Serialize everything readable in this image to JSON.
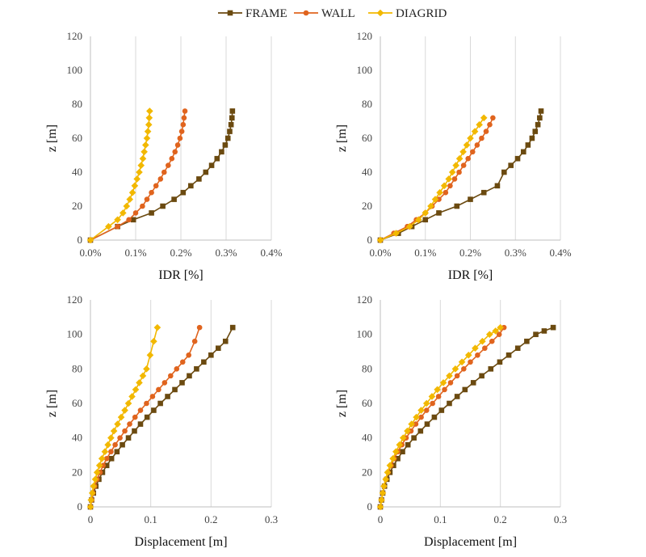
{
  "legend": {
    "items": [
      {
        "label": "FRAME",
        "color": "#6b4a10",
        "marker": "square"
      },
      {
        "label": "WALL",
        "color": "#e0641e",
        "marker": "circle"
      },
      {
        "label": "DIAGRID",
        "color": "#f2b800",
        "marker": "diamond"
      }
    ]
  },
  "chart_data": [
    {
      "type": "line",
      "xlabel": "IDR [%]",
      "ylabel": "z [m]",
      "xlim": [
        0,
        0.4
      ],
      "ylim": [
        0,
        120
      ],
      "x_ticks": [
        0,
        0.1,
        0.2,
        0.3,
        0.4
      ],
      "x_tick_labels": [
        "0.0%",
        "0.1%",
        "0.2%",
        "0.3%",
        "0.4%"
      ],
      "y_ticks": [
        0,
        20,
        40,
        60,
        80,
        100,
        120
      ],
      "grid": "vertical",
      "legend": "top",
      "series": [
        {
          "name": "FRAME",
          "x": [
            0,
            0.06,
            0.095,
            0.135,
            0.16,
            0.185,
            0.205,
            0.222,
            0.24,
            0.255,
            0.268,
            0.28,
            0.29,
            0.298,
            0.304,
            0.308,
            0.311,
            0.313,
            0.314
          ],
          "y": [
            0,
            8,
            12,
            16,
            20,
            24,
            28,
            32,
            36,
            40,
            44,
            48,
            52,
            56,
            60,
            64,
            68,
            72,
            76
          ]
        },
        {
          "name": "WALL",
          "x": [
            0,
            0.06,
            0.085,
            0.1,
            0.115,
            0.125,
            0.135,
            0.145,
            0.155,
            0.163,
            0.172,
            0.18,
            0.187,
            0.193,
            0.198,
            0.202,
            0.205,
            0.207,
            0.209
          ],
          "y": [
            0,
            8,
            12,
            16,
            20,
            24,
            28,
            32,
            36,
            40,
            44,
            48,
            52,
            56,
            60,
            64,
            68,
            72,
            76
          ]
        },
        {
          "name": "DIAGRID",
          "x": [
            0,
            0.04,
            0.06,
            0.072,
            0.08,
            0.087,
            0.093,
            0.098,
            0.103,
            0.108,
            0.112,
            0.116,
            0.119,
            0.122,
            0.125,
            0.127,
            0.129,
            0.13,
            0.131
          ],
          "y": [
            0,
            8,
            12,
            16,
            20,
            24,
            28,
            32,
            36,
            40,
            44,
            48,
            52,
            56,
            60,
            64,
            68,
            72,
            76
          ]
        }
      ]
    },
    {
      "type": "line",
      "xlabel": "IDR [%]",
      "ylabel": "z [m]",
      "xlim": [
        0,
        0.4
      ],
      "ylim": [
        0,
        120
      ],
      "x_ticks": [
        0,
        0.1,
        0.2,
        0.3,
        0.4
      ],
      "x_tick_labels": [
        "0.0%",
        "0.1%",
        "0.2%",
        "0.3%",
        "0.4%"
      ],
      "y_ticks": [
        0,
        20,
        40,
        60,
        80,
        100,
        120
      ],
      "grid": "vertical",
      "series": [
        {
          "name": "FRAME",
          "x": [
            0,
            0.04,
            0.07,
            0.1,
            0.13,
            0.17,
            0.2,
            0.23,
            0.26,
            0.275,
            0.29,
            0.305,
            0.318,
            0.328,
            0.337,
            0.344,
            0.35,
            0.354,
            0.357
          ],
          "y": [
            0,
            4,
            8,
            12,
            16,
            20,
            24,
            28,
            32,
            40,
            44,
            48,
            52,
            56,
            60,
            64,
            68,
            72,
            76
          ]
        },
        {
          "name": "WALL",
          "x": [
            0,
            0.03,
            0.06,
            0.08,
            0.1,
            0.115,
            0.13,
            0.145,
            0.155,
            0.165,
            0.175,
            0.185,
            0.195,
            0.205,
            0.215,
            0.225,
            0.235,
            0.243,
            0.25
          ],
          "y": [
            0,
            4,
            8,
            12,
            16,
            20,
            24,
            28,
            32,
            36,
            40,
            44,
            48,
            52,
            56,
            60,
            64,
            68,
            72
          ]
        },
        {
          "name": "DIAGRID",
          "x": [
            0,
            0.035,
            0.065,
            0.085,
            0.1,
            0.112,
            0.122,
            0.132,
            0.142,
            0.152,
            0.16,
            0.168,
            0.176,
            0.184,
            0.192,
            0.2,
            0.21,
            0.22,
            0.23
          ],
          "y": [
            0,
            4,
            8,
            12,
            16,
            20,
            24,
            28,
            32,
            36,
            40,
            44,
            48,
            52,
            56,
            60,
            64,
            68,
            72
          ]
        }
      ]
    },
    {
      "type": "line",
      "xlabel": "Displacement [m]",
      "ylabel": "z [m]",
      "xlim": [
        0,
        0.3
      ],
      "ylim": [
        0,
        120
      ],
      "x_ticks": [
        0,
        0.1,
        0.2,
        0.3
      ],
      "x_tick_labels": [
        "0",
        "0.1",
        "0.2",
        "0.3"
      ],
      "y_ticks": [
        0,
        20,
        40,
        60,
        80,
        100,
        120
      ],
      "grid": "vertical",
      "series": [
        {
          "name": "FRAME",
          "x": [
            0,
            0.002,
            0.005,
            0.009,
            0.014,
            0.02,
            0.027,
            0.035,
            0.044,
            0.053,
            0.063,
            0.073,
            0.083,
            0.094,
            0.105,
            0.116,
            0.128,
            0.14,
            0.152,
            0.164,
            0.176,
            0.188,
            0.2,
            0.212,
            0.224,
            0.236
          ],
          "y": [
            0,
            4,
            8,
            12,
            16,
            20,
            24,
            28,
            32,
            36,
            40,
            44,
            48,
            52,
            56,
            60,
            64,
            68,
            72,
            76,
            80,
            84,
            88,
            92,
            96,
            104
          ]
        },
        {
          "name": "WALL",
          "x": [
            0,
            0.002,
            0.004,
            0.007,
            0.011,
            0.016,
            0.021,
            0.027,
            0.034,
            0.041,
            0.049,
            0.057,
            0.065,
            0.074,
            0.083,
            0.093,
            0.103,
            0.113,
            0.123,
            0.133,
            0.143,
            0.153,
            0.163,
            0.173,
            0.181
          ],
          "y": [
            0,
            4,
            8,
            12,
            16,
            20,
            24,
            28,
            32,
            36,
            40,
            44,
            48,
            52,
            56,
            60,
            64,
            68,
            72,
            76,
            80,
            84,
            88,
            96,
            104
          ]
        },
        {
          "name": "DIAGRID",
          "x": [
            0,
            0.001,
            0.003,
            0.005,
            0.008,
            0.011,
            0.015,
            0.019,
            0.024,
            0.029,
            0.034,
            0.039,
            0.045,
            0.051,
            0.057,
            0.063,
            0.069,
            0.075,
            0.081,
            0.087,
            0.093,
            0.099,
            0.105,
            0.111
          ],
          "y": [
            0,
            4,
            8,
            12,
            16,
            20,
            24,
            28,
            32,
            36,
            40,
            44,
            48,
            52,
            56,
            60,
            64,
            68,
            72,
            76,
            80,
            88,
            96,
            104
          ]
        }
      ]
    },
    {
      "type": "line",
      "xlabel": "Displacement [m]",
      "ylabel": "z [m]",
      "xlim": [
        0,
        0.3
      ],
      "ylim": [
        0,
        120
      ],
      "x_ticks": [
        0,
        0.1,
        0.2,
        0.3
      ],
      "x_tick_labels": [
        "0",
        "0.1",
        "0.2",
        "0.3"
      ],
      "y_ticks": [
        0,
        20,
        40,
        60,
        80,
        100,
        120
      ],
      "grid": "vertical",
      "series": [
        {
          "name": "FRAME",
          "x": [
            0,
            0.002,
            0.004,
            0.007,
            0.011,
            0.016,
            0.022,
            0.029,
            0.037,
            0.046,
            0.056,
            0.067,
            0.078,
            0.09,
            0.102,
            0.115,
            0.128,
            0.141,
            0.155,
            0.169,
            0.184,
            0.199,
            0.214,
            0.229,
            0.244,
            0.259,
            0.273,
            0.288
          ],
          "y": [
            0,
            4,
            8,
            12,
            16,
            20,
            24,
            28,
            32,
            36,
            40,
            44,
            48,
            52,
            56,
            60,
            64,
            68,
            72,
            76,
            80,
            84,
            88,
            92,
            96,
            100,
            102,
            104
          ]
        },
        {
          "name": "WALL",
          "x": [
            0,
            0.002,
            0.004,
            0.006,
            0.009,
            0.013,
            0.018,
            0.023,
            0.029,
            0.036,
            0.043,
            0.051,
            0.059,
            0.068,
            0.077,
            0.087,
            0.097,
            0.107,
            0.117,
            0.128,
            0.139,
            0.15,
            0.162,
            0.174,
            0.186,
            0.198,
            0.206
          ],
          "y": [
            0,
            4,
            8,
            12,
            16,
            20,
            24,
            28,
            32,
            36,
            40,
            44,
            48,
            52,
            56,
            60,
            64,
            68,
            72,
            76,
            80,
            84,
            88,
            92,
            96,
            100,
            104
          ]
        },
        {
          "name": "DIAGRID",
          "x": [
            0,
            0.002,
            0.004,
            0.006,
            0.009,
            0.012,
            0.016,
            0.021,
            0.026,
            0.032,
            0.038,
            0.045,
            0.052,
            0.06,
            0.068,
            0.077,
            0.086,
            0.095,
            0.105,
            0.115,
            0.125,
            0.136,
            0.147,
            0.158,
            0.17,
            0.182,
            0.192,
            0.2
          ],
          "y": [
            0,
            4,
            8,
            12,
            16,
            20,
            24,
            28,
            32,
            36,
            40,
            44,
            48,
            52,
            56,
            60,
            64,
            68,
            72,
            76,
            80,
            84,
            88,
            92,
            96,
            100,
            102,
            104
          ]
        }
      ]
    }
  ]
}
